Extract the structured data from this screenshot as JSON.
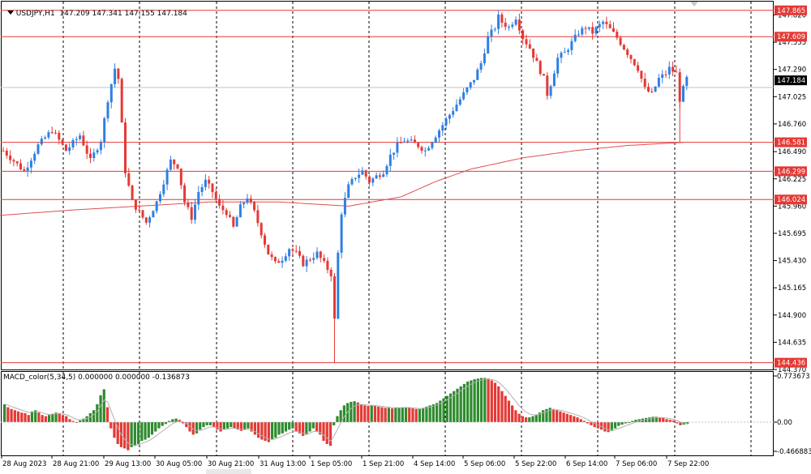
{
  "header": {
    "symbol": "USDJPY,H1",
    "ohlc": "147.209 147.341 147.155 147.184"
  },
  "price_axis": {
    "ticks": [
      "147.820",
      "147.555",
      "147.290",
      "147.025",
      "146.760",
      "146.490",
      "146.225",
      "145.960",
      "145.695",
      "145.430",
      "145.165",
      "144.900",
      "144.635",
      "144.370"
    ],
    "current_price": "147.184",
    "level_labels": [
      "147.865",
      "147.609",
      "146.581",
      "146.299",
      "146.024",
      "144.436"
    ]
  },
  "macd": {
    "label": "MACD_color(5,34,5) 0.000000 0.000000 -0.136873",
    "axis_ticks": [
      "0.773673",
      "0.00",
      "-0.466883"
    ]
  },
  "time_axis": {
    "labels": [
      "28 Aug 2023",
      "28 Aug 21:00",
      "29 Aug 13:00",
      "30 Aug 05:00",
      "30 Aug 21:00",
      "31 Aug 13:00",
      "1 Sep 05:00",
      "1 Sep 21:00",
      "4 Sep 14:00",
      "5 Sep 06:00",
      "5 Sep 22:00",
      "6 Sep 14:00",
      "7 Sep 06:00",
      "7 Sep 22:00"
    ]
  },
  "colors": {
    "bull": "#2f7fe3",
    "bear": "#e53935",
    "level": "#e53935",
    "ma": "#e05050",
    "macd_up": "#2e8b2e",
    "macd_down": "#e53935",
    "grid": "#000000"
  },
  "chart_data": {
    "type": "candlestick",
    "symbol": "USDJPY",
    "timeframe": "H1",
    "ylim": [
      144.37,
      147.95
    ],
    "horizontal_levels": [
      147.865,
      147.609,
      146.581,
      146.299,
      146.024,
      144.436
    ],
    "close_path": [
      [
        0,
        146.5
      ],
      [
        6,
        146.3
      ],
      [
        10,
        146.55
      ],
      [
        14,
        146.7
      ],
      [
        18,
        146.5
      ],
      [
        22,
        146.65
      ],
      [
        25,
        146.4
      ],
      [
        28,
        146.6
      ],
      [
        30,
        147.0
      ],
      [
        32,
        147.3
      ],
      [
        33,
        147.2
      ],
      [
        35,
        146.3
      ],
      [
        37,
        146.0
      ],
      [
        39,
        145.9
      ],
      [
        41,
        145.8
      ],
      [
        44,
        146.0
      ],
      [
        46,
        146.2
      ],
      [
        48,
        146.4
      ],
      [
        50,
        146.35
      ],
      [
        52,
        146.0
      ],
      [
        54,
        145.85
      ],
      [
        56,
        146.1
      ],
      [
        58,
        146.2
      ],
      [
        60,
        146.1
      ],
      [
        62,
        145.95
      ],
      [
        64,
        145.9
      ],
      [
        66,
        145.75
      ],
      [
        68,
        145.95
      ],
      [
        70,
        146.05
      ],
      [
        72,
        145.9
      ],
      [
        74,
        145.7
      ],
      [
        76,
        145.5
      ],
      [
        78,
        145.4
      ],
      [
        80,
        145.45
      ],
      [
        82,
        145.55
      ],
      [
        84,
        145.5
      ],
      [
        86,
        145.4
      ],
      [
        88,
        145.45
      ],
      [
        90,
        145.5
      ],
      [
        92,
        145.4
      ],
      [
        94,
        145.3
      ],
      [
        95,
        144.85
      ],
      [
        96,
        145.5
      ],
      [
        97,
        145.9
      ],
      [
        99,
        146.15
      ],
      [
        101,
        146.25
      ],
      [
        103,
        146.3
      ],
      [
        105,
        146.2
      ],
      [
        107,
        146.25
      ],
      [
        109,
        146.3
      ],
      [
        111,
        146.45
      ],
      [
        113,
        146.55
      ],
      [
        115,
        146.6
      ],
      [
        117,
        146.58
      ],
      [
        119,
        146.55
      ],
      [
        121,
        146.5
      ],
      [
        123,
        146.6
      ],
      [
        125,
        146.7
      ],
      [
        127,
        146.8
      ],
      [
        129,
        146.9
      ],
      [
        131,
        147.0
      ],
      [
        133,
        147.1
      ],
      [
        135,
        147.2
      ],
      [
        137,
        147.35
      ],
      [
        139,
        147.6
      ],
      [
        141,
        147.7
      ],
      [
        142,
        147.8
      ],
      [
        143,
        147.75
      ],
      [
        145,
        147.7
      ],
      [
        147,
        147.8
      ],
      [
        149,
        147.6
      ],
      [
        151,
        147.5
      ],
      [
        153,
        147.35
      ],
      [
        155,
        147.2
      ],
      [
        156,
        147.05
      ],
      [
        157,
        147.15
      ],
      [
        159,
        147.4
      ],
      [
        161,
        147.45
      ],
      [
        163,
        147.55
      ],
      [
        165,
        147.65
      ],
      [
        167,
        147.7
      ],
      [
        169,
        147.65
      ],
      [
        171,
        147.72
      ],
      [
        172,
        147.75
      ],
      [
        174,
        147.68
      ],
      [
        176,
        147.6
      ],
      [
        178,
        147.5
      ],
      [
        180,
        147.4
      ],
      [
        182,
        147.3
      ],
      [
        184,
        147.1
      ],
      [
        186,
        147.05
      ],
      [
        188,
        147.2
      ],
      [
        190,
        147.25
      ],
      [
        191,
        147.3
      ],
      [
        193,
        147.25
      ],
      [
        194,
        147.0
      ],
      [
        196,
        147.2
      ]
    ],
    "ma_path": [
      [
        0,
        145.87
      ],
      [
        20,
        145.92
      ],
      [
        40,
        145.96
      ],
      [
        60,
        146.0
      ],
      [
        80,
        146.0
      ],
      [
        100,
        145.96
      ],
      [
        115,
        146.05
      ],
      [
        125,
        146.2
      ],
      [
        135,
        146.32
      ],
      [
        150,
        146.43
      ],
      [
        165,
        146.5
      ],
      [
        180,
        146.55
      ],
      [
        196,
        146.58
      ]
    ],
    "macd_values": [
      0.3,
      0.25,
      0.22,
      0.2,
      0.18,
      0.16,
      0.15,
      0.12,
      0.18,
      0.2,
      0.16,
      0.12,
      0.1,
      0.12,
      0.14,
      0.16,
      0.15,
      0.12,
      0.1,
      0.05,
      0.02,
      -0.01,
      0.03,
      0.06,
      0.1,
      0.15,
      0.2,
      0.3,
      0.45,
      0.55,
      0.25,
      -0.1,
      -0.25,
      -0.35,
      -0.4,
      -0.42,
      -0.45,
      -0.4,
      -0.38,
      -0.35,
      -0.3,
      -0.28,
      -0.25,
      -0.2,
      -0.15,
      -0.1,
      -0.06,
      -0.03,
      0.02,
      0.05,
      0.06,
      0.04,
      -0.02,
      -0.08,
      -0.15,
      -0.2,
      -0.18,
      -0.12,
      -0.08,
      -0.05,
      -0.05,
      -0.08,
      -0.12,
      -0.15,
      -0.12,
      -0.1,
      -0.08,
      -0.1,
      -0.12,
      -0.14,
      -0.12,
      -0.1,
      -0.15,
      -0.2,
      -0.25,
      -0.28,
      -0.3,
      -0.32,
      -0.28,
      -0.25,
      -0.2,
      -0.18,
      -0.15,
      -0.12,
      -0.1,
      -0.15,
      -0.18,
      -0.22,
      -0.2,
      -0.15,
      -0.1,
      -0.15,
      -0.2,
      -0.3,
      -0.35,
      -0.38,
      -0.05,
      0.1,
      0.2,
      0.28,
      0.32,
      0.34,
      0.35,
      0.33,
      0.3,
      0.28,
      0.27,
      0.28,
      0.27,
      0.26,
      0.25,
      0.24,
      0.24,
      0.23,
      0.24,
      0.24,
      0.25,
      0.25,
      0.24,
      0.23,
      0.22,
      0.22,
      0.24,
      0.26,
      0.28,
      0.3,
      0.32,
      0.36,
      0.4,
      0.44,
      0.48,
      0.52,
      0.56,
      0.6,
      0.64,
      0.68,
      0.7,
      0.72,
      0.73,
      0.74,
      0.74,
      0.73,
      0.7,
      0.66,
      0.6,
      0.52,
      0.44,
      0.36,
      0.28,
      0.2,
      0.14,
      0.1,
      0.08,
      0.08,
      0.1,
      0.12,
      0.16,
      0.2,
      0.22,
      0.24,
      0.22,
      0.2,
      0.18,
      0.16,
      0.14,
      0.12,
      0.1,
      0.08,
      0.05,
      0.02,
      -0.02,
      -0.05,
      -0.08,
      -0.1,
      -0.12,
      -0.15,
      -0.16,
      -0.14,
      -0.1,
      -0.06,
      -0.04,
      -0.02,
      0.0,
      0.02,
      0.04,
      0.05,
      0.06,
      0.07,
      0.08,
      0.09,
      0.09,
      0.08,
      0.07,
      0.05,
      0.04,
      0.03,
      -0.02,
      -0.05,
      -0.04,
      -0.03
    ]
  }
}
